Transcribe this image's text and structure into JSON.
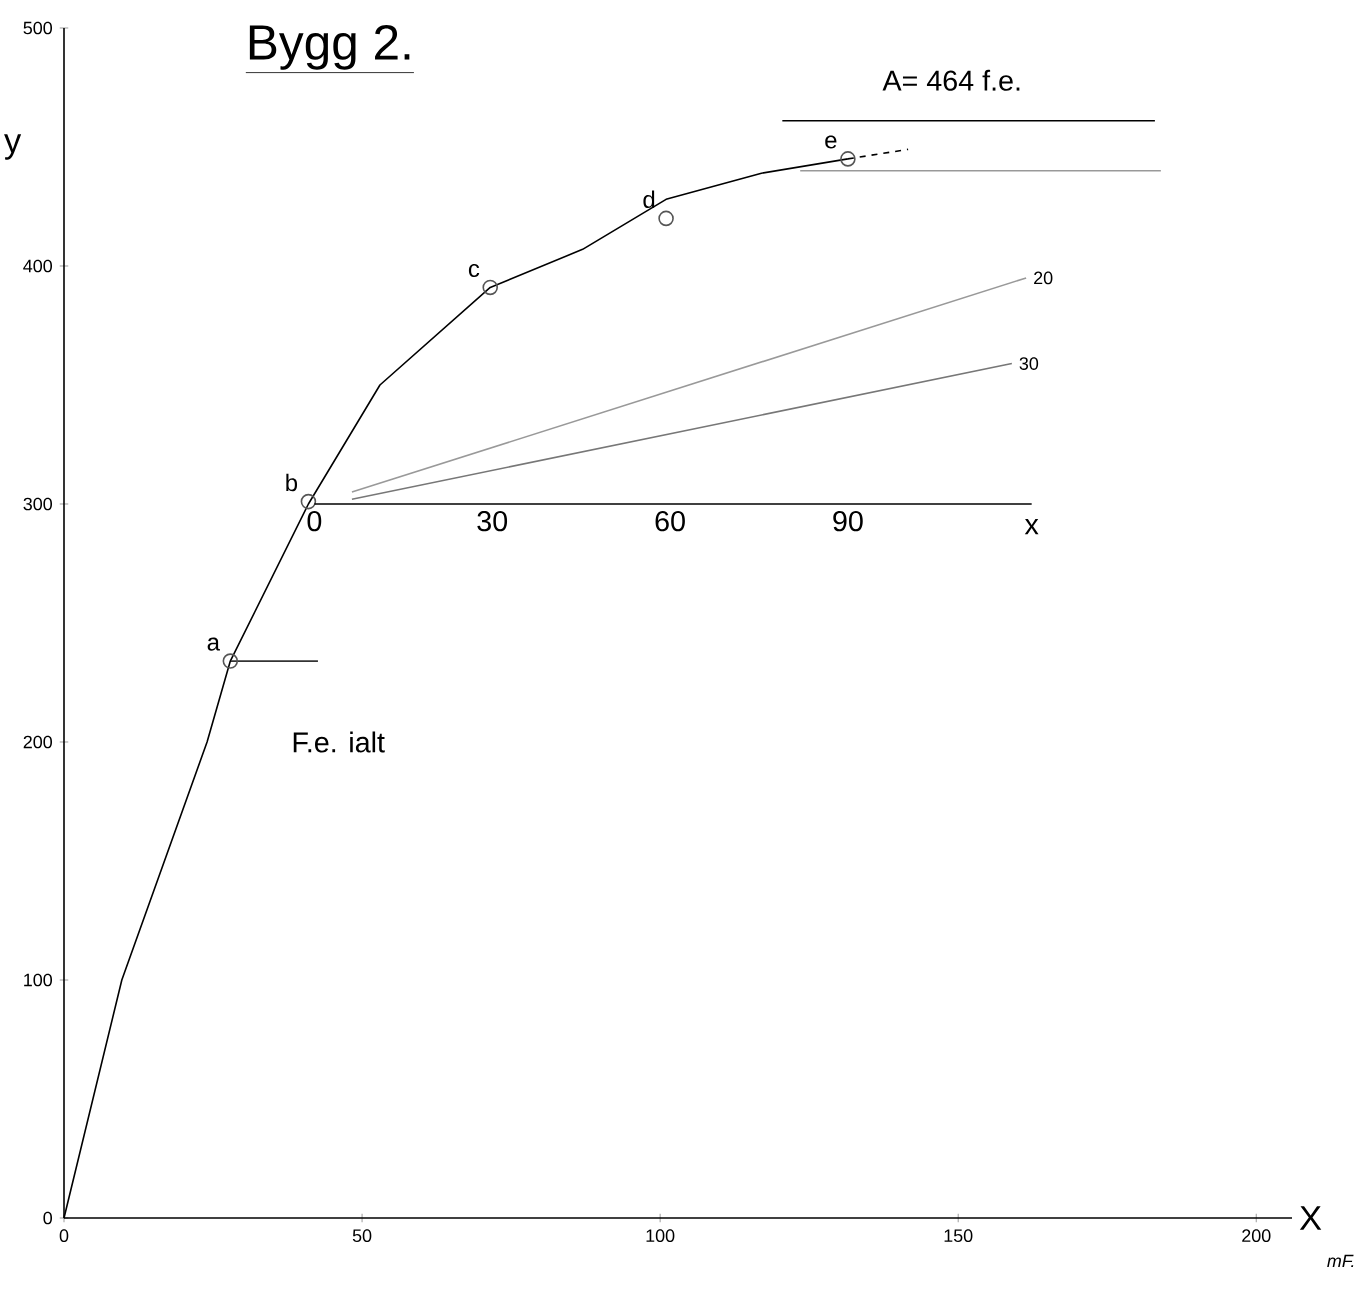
{
  "chart_data": {
    "type": "line",
    "title": "Bygg 2.",
    "xlabel": "X",
    "ylabel": "y",
    "x2label": "x",
    "xlim": [
      0,
      206
    ],
    "ylim": [
      0,
      500
    ],
    "xticks": [
      0,
      50,
      100,
      150,
      200
    ],
    "yticks": [
      0,
      100,
      200,
      300,
      400,
      500
    ],
    "x2lim": [
      0,
      121
    ],
    "x2ticks": [
      0,
      30,
      60,
      90
    ],
    "grid": false,
    "series": [
      {
        "color": "#000000",
        "x": [
          0,
          9.7,
          24,
          27.9,
          41,
          53,
          71.5,
          87,
          101,
          117,
          131.5
        ],
        "values": [
          0,
          100,
          200,
          234,
          300,
          350,
          391,
          407,
          428,
          439,
          445
        ]
      },
      {
        "color": "#000000",
        "line_style": "dashed",
        "x": [
          131.5,
          141.6
        ],
        "values": [
          445,
          449
        ]
      },
      {
        "type": "scatter",
        "marker": "circle",
        "color": "#555555",
        "x": [
          27.9,
          41,
          71.5,
          101,
          131.5
        ],
        "values": [
          234,
          301,
          391,
          420,
          445
        ],
        "value_labels": [
          "a",
          "b",
          "c",
          "d",
          "e"
        ]
      },
      {
        "color": "#333333",
        "x": [
          28,
          42.6
        ],
        "values": [
          234,
          234
        ]
      },
      {
        "name": "20",
        "color": "#999999",
        "x": [
          48.3,
          161.4
        ],
        "values": [
          305,
          395
        ]
      },
      {
        "name": "30",
        "color": "#777777",
        "x": [
          48.3,
          159
        ],
        "values": [
          302,
          359
        ]
      },
      {
        "color": "#999999",
        "x": [
          123.5,
          184
        ],
        "values": [
          440,
          440
        ]
      },
      {
        "color": "#000000",
        "x": [
          120.5,
          183
        ],
        "values": [
          461,
          461
        ]
      }
    ],
    "annotations": [
      "A= 464 f.e.",
      "F.e. ialt",
      "mF."
    ]
  }
}
